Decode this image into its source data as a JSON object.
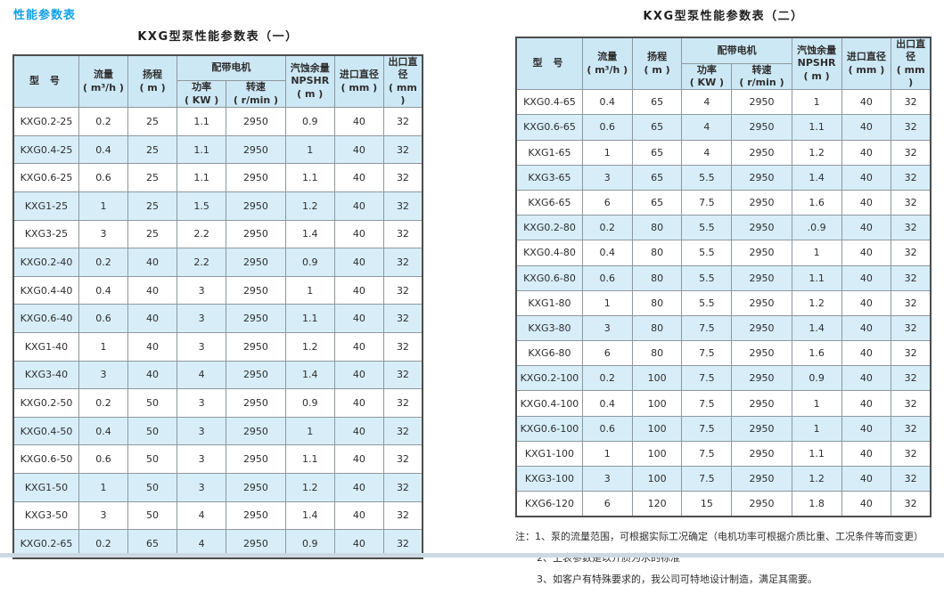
{
  "page_title": "性能参数表",
  "colors": {
    "accent_blue": "#14a0e6",
    "header_bg": "#cde8f5",
    "row_alt_bg": "#d7eef9",
    "outer_border": "#4d4d4d",
    "inner_border": "#8d989f",
    "bottom_strip": "#ccd9e2"
  },
  "header_labels": {
    "model": "型 号",
    "flow_l1": "流量",
    "flow_l2": "( m³/h )",
    "head_l1": "扬程",
    "head_l2": "( m )",
    "motor": "配带电机",
    "power_l1": "功率",
    "power_l2": "( KW )",
    "speed_l1": "转速",
    "speed_l2": "( r/min )",
    "npshr_l1": "汽蚀余量",
    "npshr_l2": "NPSHR",
    "npshr_l3": "( m )",
    "inlet_l1": "进口直径",
    "inlet_l2": "( mm )",
    "outlet_l1": "出口直径",
    "outlet_l2": "( mm )"
  },
  "tables": [
    {
      "title": "KXG型泵性能参数表（一）",
      "rows": [
        [
          "KXG0.2-25",
          "0.2",
          "25",
          "1.1",
          "2950",
          "0.9",
          "40",
          "32"
        ],
        [
          "KXG0.4-25",
          "0.4",
          "25",
          "1.1",
          "2950",
          "1",
          "40",
          "32"
        ],
        [
          "KXG0.6-25",
          "0.6",
          "25",
          "1.1",
          "2950",
          "1.1",
          "40",
          "32"
        ],
        [
          "KXG1-25",
          "1",
          "25",
          "1.5",
          "2950",
          "1.2",
          "40",
          "32"
        ],
        [
          "KXG3-25",
          "3",
          "25",
          "2.2",
          "2950",
          "1.4",
          "40",
          "32"
        ],
        [
          "KXG0.2-40",
          "0.2",
          "40",
          "2.2",
          "2950",
          "0.9",
          "40",
          "32"
        ],
        [
          "KXG0.4-40",
          "0.4",
          "40",
          "3",
          "2950",
          "1",
          "40",
          "32"
        ],
        [
          "KXG0.6-40",
          "0.6",
          "40",
          "3",
          "2950",
          "1.1",
          "40",
          "32"
        ],
        [
          "KXG1-40",
          "1",
          "40",
          "3",
          "2950",
          "1.2",
          "40",
          "32"
        ],
        [
          "KXG3-40",
          "3",
          "40",
          "4",
          "2950",
          "1.4",
          "40",
          "32"
        ],
        [
          "KXG0.2-50",
          "0.2",
          "50",
          "3",
          "2950",
          "0.9",
          "40",
          "32"
        ],
        [
          "KXG0.4-50",
          "0.4",
          "50",
          "3",
          "2950",
          "1",
          "40",
          "32"
        ],
        [
          "KXG0.6-50",
          "0.6",
          "50",
          "3",
          "2950",
          "1.1",
          "40",
          "32"
        ],
        [
          "KXG1-50",
          "1",
          "50",
          "3",
          "2950",
          "1.2",
          "40",
          "32"
        ],
        [
          "KXG3-50",
          "3",
          "50",
          "4",
          "2950",
          "1.4",
          "40",
          "32"
        ],
        [
          "KXG0.2-65",
          "0.2",
          "65",
          "4",
          "2950",
          "0.9",
          "40",
          "32"
        ]
      ]
    },
    {
      "title": "KXG型泵性能参数表（二）",
      "rows": [
        [
          "KXG0.4-65",
          "0.4",
          "65",
          "4",
          "2950",
          "1",
          "40",
          "32"
        ],
        [
          "KXG0.6-65",
          "0.6",
          "65",
          "4",
          "2950",
          "1.1",
          "40",
          "32"
        ],
        [
          "KXG1-65",
          "1",
          "65",
          "4",
          "2950",
          "1.2",
          "40",
          "32"
        ],
        [
          "KXG3-65",
          "3",
          "65",
          "5.5",
          "2950",
          "1.4",
          "40",
          "32"
        ],
        [
          "KXG6-65",
          "6",
          "65",
          "7.5",
          "2950",
          "1.6",
          "40",
          "32"
        ],
        [
          "KXG0.2-80",
          "0.2",
          "80",
          "5.5",
          "2950",
          ".0.9",
          "40",
          "32"
        ],
        [
          "KXG0.4-80",
          "0.4",
          "80",
          "5.5",
          "2950",
          "1",
          "40",
          "32"
        ],
        [
          "KXG0.6-80",
          "0.6",
          "80",
          "5.5",
          "2950",
          "1.1",
          "40",
          "32"
        ],
        [
          "KXG1-80",
          "1",
          "80",
          "5.5",
          "2950",
          "1.2",
          "40",
          "32"
        ],
        [
          "KXG3-80",
          "3",
          "80",
          "7.5",
          "2950",
          "1.4",
          "40",
          "32"
        ],
        [
          "KXG6-80",
          "6",
          "80",
          "7.5",
          "2950",
          "1.6",
          "40",
          "32"
        ],
        [
          "KXG0.2-100",
          "0.2",
          "100",
          "7.5",
          "2950",
          "0.9",
          "40",
          "32"
        ],
        [
          "KXG0.4-100",
          "0.4",
          "100",
          "7.5",
          "2950",
          "1",
          "40",
          "32"
        ],
        [
          "KXG0.6-100",
          "0.6",
          "100",
          "7.5",
          "2950",
          "1",
          "40",
          "32"
        ],
        [
          "KXG1-100",
          "1",
          "100",
          "7.5",
          "2950",
          "1.1",
          "40",
          "32"
        ],
        [
          "KXG3-100",
          "3",
          "100",
          "7.5",
          "2950",
          "1.2",
          "40",
          "32"
        ],
        [
          "KXG6-120",
          "6",
          "120",
          "15",
          "2950",
          "1.8",
          "40",
          "32"
        ]
      ]
    }
  ],
  "notes": {
    "prefix": "注：",
    "items": [
      "1、泵的流量范围，可根据实际工况确定（电机功率可根据介质比重、工况条件等而变更）",
      "2、上表参数是以介质为水的标准",
      "3、如客户有特殊要求的，我公司可特地设计制造，满足其需要。"
    ]
  }
}
